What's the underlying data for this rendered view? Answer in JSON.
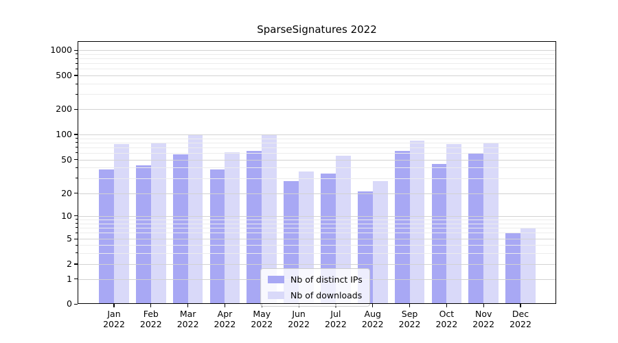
{
  "chart_data": {
    "type": "bar",
    "title": "SparseSignatures 2022",
    "categories": [
      "Jan",
      "Feb",
      "Mar",
      "Apr",
      "May",
      "Jun",
      "Jul",
      "Aug",
      "Sep",
      "Oct",
      "Nov",
      "Dec"
    ],
    "x_year_label": "2022",
    "series": [
      {
        "name": "Nb of distinct IPs",
        "color": "#a8a8f4",
        "values": [
          38,
          43,
          58,
          38,
          63,
          28,
          34,
          21,
          64,
          44,
          59,
          6
        ]
      },
      {
        "name": "Nb of downloads",
        "color": "#d9d9f9",
        "values": [
          77,
          78,
          100,
          61,
          100,
          36,
          56,
          28,
          85,
          76,
          79,
          7
        ]
      }
    ],
    "y_axis": {
      "scale": "symlog",
      "ticks": [
        0,
        1,
        2,
        5,
        10,
        20,
        50,
        100,
        200,
        500,
        1000
      ]
    },
    "grid": "major+minor",
    "legend": {
      "position": "lower center",
      "items": [
        "Nb of distinct IPs",
        "Nb of downloads"
      ]
    }
  },
  "colors": {
    "major_grid": "#d2d2d2",
    "minor_grid": "#ececec",
    "spine": "#000000"
  }
}
